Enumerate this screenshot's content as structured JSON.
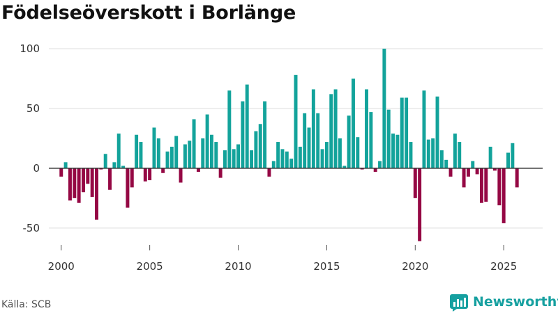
{
  "title": "Födelseöverskott i Borlänge",
  "source": "Källa: SCB",
  "brand": "Newsworthy",
  "colors": {
    "positive": "#13a39b",
    "negative": "#950844",
    "grid": "#dddddd",
    "zero": "#333333"
  },
  "chart_data": {
    "type": "bar",
    "title": "Födelseöverskott i Borlänge",
    "xlabel": "",
    "ylabel": "",
    "ylim": [
      -60,
      100
    ],
    "xlim": [
      1999.3,
      2027.2
    ],
    "yticks": [
      100,
      50,
      0,
      -50
    ],
    "xticks": [
      2000,
      2005,
      2010,
      2015,
      2020,
      2025
    ],
    "grid": true,
    "x": [
      2000.0,
      2000.25,
      2000.5,
      2000.75,
      2001.0,
      2001.25,
      2001.5,
      2001.75,
      2002.0,
      2002.25,
      2002.5,
      2002.75,
      2003.0,
      2003.25,
      2003.5,
      2003.75,
      2004.0,
      2004.25,
      2004.5,
      2004.75,
      2005.0,
      2005.25,
      2005.5,
      2005.75,
      2006.0,
      2006.25,
      2006.5,
      2006.75,
      2007.0,
      2007.25,
      2007.5,
      2007.75,
      2008.0,
      2008.25,
      2008.5,
      2008.75,
      2009.0,
      2009.25,
      2009.5,
      2009.75,
      2010.0,
      2010.25,
      2010.5,
      2010.75,
      2011.0,
      2011.25,
      2011.5,
      2011.75,
      2012.0,
      2012.25,
      2012.5,
      2012.75,
      2013.0,
      2013.25,
      2013.5,
      2013.75,
      2014.0,
      2014.25,
      2014.5,
      2014.75,
      2015.0,
      2015.25,
      2015.5,
      2015.75,
      2016.0,
      2016.25,
      2016.5,
      2016.75,
      2017.0,
      2017.25,
      2017.5,
      2017.75,
      2018.0,
      2018.25,
      2018.5,
      2018.75,
      2019.0,
      2019.25,
      2019.5,
      2019.75,
      2020.0,
      2020.25,
      2020.5,
      2020.75,
      2021.0,
      2021.25,
      2021.5,
      2021.75,
      2022.0,
      2022.25,
      2022.5,
      2022.75,
      2023.0,
      2023.25,
      2023.5,
      2023.75,
      2024.0,
      2024.25,
      2024.5,
      2024.75,
      2025.0,
      2025.25,
      2025.5,
      2025.75
    ],
    "values": [
      -7,
      5,
      -27,
      -25,
      -29,
      -20,
      -13,
      -24,
      -43,
      -1,
      12,
      -18,
      5,
      29,
      2,
      -33,
      -16,
      28,
      22,
      -11,
      -10,
      34,
      25,
      -4,
      14,
      18,
      27,
      -12,
      20,
      23,
      41,
      -3,
      25,
      45,
      28,
      22,
      -8,
      15,
      65,
      16,
      20,
      56,
      70,
      15,
      31,
      37,
      56,
      -7,
      6,
      22,
      16,
      14,
      8,
      78,
      18,
      46,
      34,
      66,
      46,
      16,
      22,
      62,
      66,
      25,
      2,
      44,
      75,
      26,
      -1,
      66,
      47,
      -3,
      6,
      100,
      49,
      29,
      28,
      59,
      59,
      22,
      -25,
      -61,
      65,
      24,
      25,
      60,
      15,
      7,
      -7,
      29,
      22,
      -16,
      -7,
      6,
      -5,
      -29,
      -28,
      18,
      -2,
      -31,
      -46,
      13,
      21,
      -16
    ]
  }
}
